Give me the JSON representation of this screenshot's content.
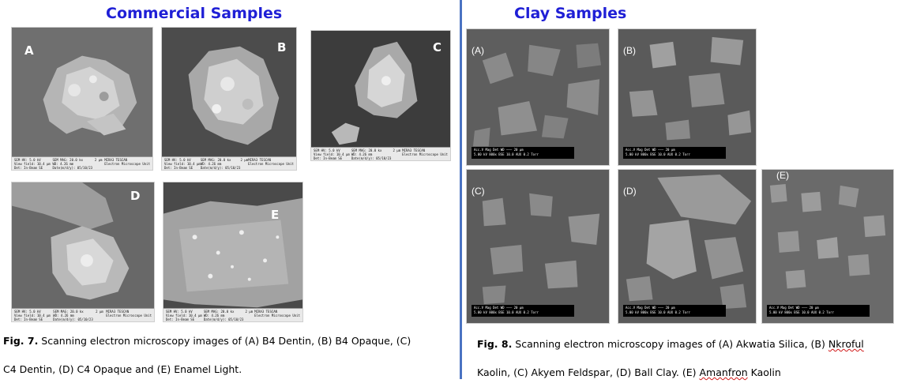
{
  "left": {
    "heading": "Commercial Samples",
    "panels": [
      {
        "letter": "A"
      },
      {
        "letter": "B"
      },
      {
        "letter": "C"
      },
      {
        "letter": "D"
      },
      {
        "letter": "E"
      }
    ],
    "info_bar": {
      "c1a": "SEM HV: 5.0 kV",
      "c1b": "View field: 10.4 µm",
      "c1c": "Det: In-Beam SE",
      "c2a": "SEM MAG: 20.0 kx",
      "c2b": "WD: 4.26 mm",
      "c2c": "Date(m/d/y): 05/10/23",
      "c3a": "2 µm",
      "c4a": "MIRA3 TESCAN",
      "c4b": "Electron Microscope Unit"
    },
    "caption": {
      "fig": "Fig. 7.",
      "line1": " Scanning electron microscopy images of (A) B4 Dentin, (B) B4 Opaque, (C)",
      "line2": "C4 Dentin, (D) C4 Opaque and (E) Enamel Light."
    }
  },
  "right": {
    "heading": "Clay Samples",
    "panels": [
      {
        "letter": "(A)"
      },
      {
        "letter": "(B)"
      },
      {
        "letter": "(C)"
      },
      {
        "letter": "(D)"
      },
      {
        "letter": "(E)"
      }
    ],
    "info_bar": {
      "r1": "Acc.V  Mag   Det  WD  ——— 20 µm",
      "r2": "5.00 kV 800x  BSE 10.0  AUX  0.2 Torr"
    },
    "caption": {
      "fig": "Fig. 8.",
      "line1a": " Scanning electron microscopy images of (A) Akwatia Silica, (B) ",
      "nkroful": "Nkroful",
      "line2a": "Kaolin, (C) Akyem Feldspar, (D) Ball Clay. (E) ",
      "amanfron": "Amanfron",
      "line2b": " Kaolin"
    }
  }
}
